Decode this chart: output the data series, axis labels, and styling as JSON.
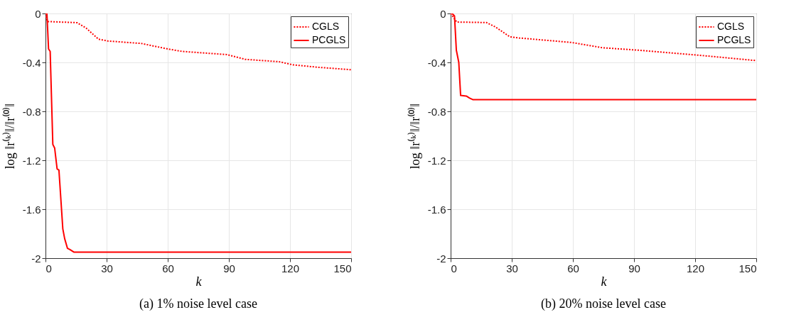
{
  "chart_data": [
    {
      "type": "line",
      "title": "(a) 1% noise level case",
      "xlabel": "k",
      "ylabel": "log ‖r⁽ᵏ⁾‖/‖r⁽⁰⁾‖",
      "xlim": [
        0,
        150
      ],
      "xticks": [
        0,
        30,
        60,
        90,
        120,
        150
      ],
      "ylim": [
        -2,
        0
      ],
      "yticks": [
        -2,
        -1.6,
        -1.2,
        -0.8,
        -0.4,
        0
      ],
      "grid": true,
      "legend": "top right",
      "series": [
        {
          "name": "CGLS",
          "color": "#ff0000",
          "line_style": "dotted",
          "x": [
            0,
            1,
            15.5,
            20,
            26,
            30.6,
            47,
            60,
            67,
            89,
            98,
            114.6,
            121.6,
            134,
            150
          ],
          "values": [
            0,
            -0.066,
            -0.075,
            -0.12,
            -0.21,
            -0.225,
            -0.245,
            -0.29,
            -0.31,
            -0.336,
            -0.375,
            -0.394,
            -0.42,
            -0.44,
            -0.46
          ]
        },
        {
          "name": "PCGLS",
          "color": "#ff0000",
          "line_style": "solid",
          "x": [
            0.7,
            1.5,
            2.3,
            3.6,
            4.5,
            5.7,
            6.6,
            8.5,
            9.4,
            10.8,
            12,
            13.9,
            150
          ],
          "values": [
            0,
            -0.29,
            -0.31,
            -1.07,
            -1.1,
            -1.27,
            -1.28,
            -1.76,
            -1.84,
            -1.92,
            -1.93,
            -1.95,
            -1.95
          ]
        }
      ]
    },
    {
      "type": "line",
      "title": "(b) 20% noise level case",
      "xlabel": "k",
      "ylabel": "log ‖r⁽ᵏ⁾‖/‖r⁽⁰⁾‖",
      "xlim": [
        0,
        150
      ],
      "xticks": [
        0,
        30,
        60,
        90,
        120,
        150
      ],
      "ylim": [
        -2,
        0
      ],
      "yticks": [
        -2,
        -1.6,
        -1.2,
        -0.8,
        -0.4,
        0
      ],
      "grid": true,
      "legend": "top right",
      "series": [
        {
          "name": "CGLS",
          "color": "#ff0000",
          "line_style": "dotted",
          "x": [
            0,
            3,
            17.5,
            22,
            29,
            33.5,
            59.4,
            74.5,
            92,
            121,
            150
          ],
          "values": [
            0,
            -0.07,
            -0.074,
            -0.11,
            -0.19,
            -0.2,
            -0.237,
            -0.28,
            -0.3,
            -0.34,
            -0.385
          ]
        },
        {
          "name": "PCGLS",
          "color": "#ff0000",
          "line_style": "solid",
          "x": [
            0.7,
            1.9,
            2.8,
            4,
            4.9,
            7.7,
            9.2,
            11,
            150
          ],
          "values": [
            0,
            -0.02,
            -0.3,
            -0.4,
            -0.67,
            -0.675,
            -0.69,
            -0.705,
            -0.705
          ]
        }
      ]
    }
  ]
}
